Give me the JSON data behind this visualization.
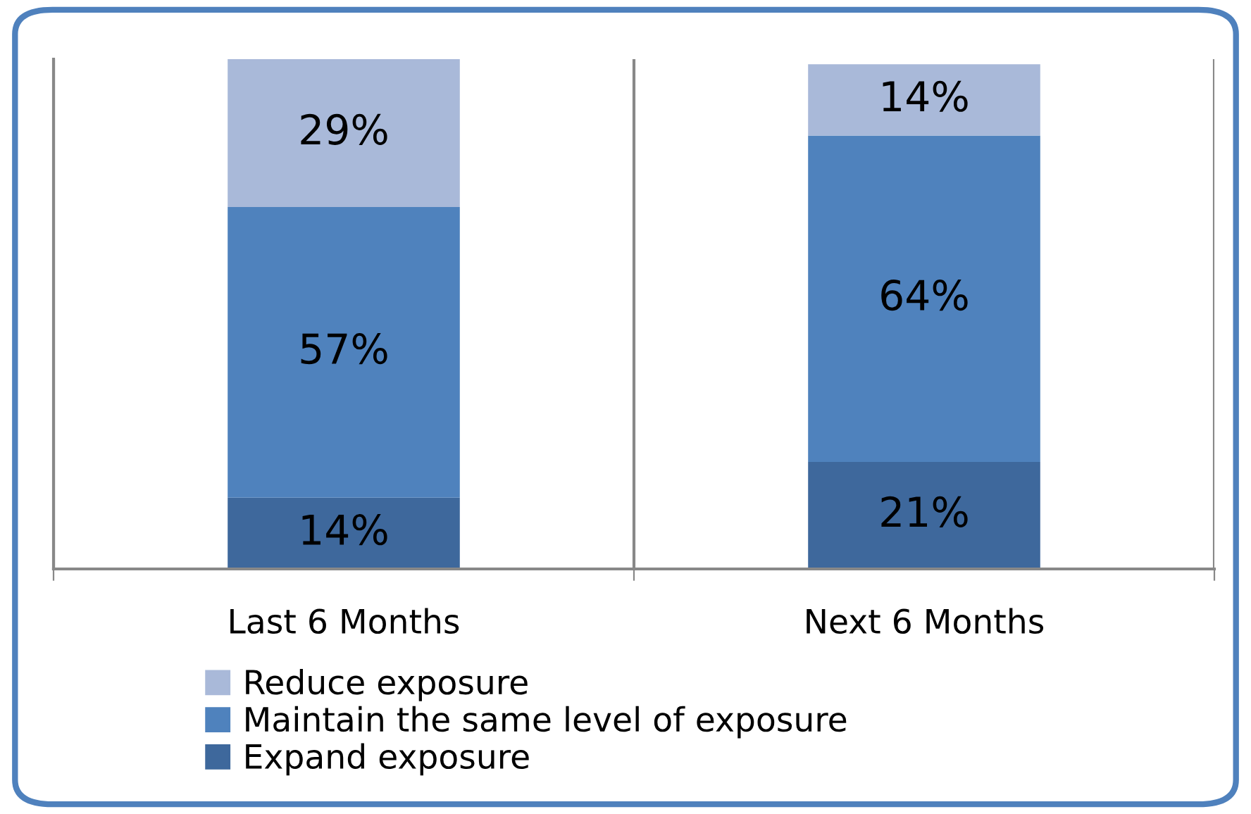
{
  "chart_data": {
    "type": "bar",
    "stacked": true,
    "categories": [
      "Last 6 Months",
      "Next 6 Months"
    ],
    "series": [
      {
        "name": "Expand exposure",
        "color": "#3e689c",
        "values": [
          14,
          21
        ],
        "value_labels": [
          "14%",
          "21%"
        ]
      },
      {
        "name": "Maintain the same level of exposure",
        "color": "#4f82bd",
        "values": [
          57,
          64
        ],
        "value_labels": [
          "57%",
          "64%"
        ]
      },
      {
        "name": "Reduce exposure",
        "color": "#a9b9d9",
        "values": [
          29,
          14
        ],
        "value_labels": [
          "29%",
          "14%"
        ]
      }
    ],
    "legend": "bottom",
    "grid": "x",
    "tick_labels": "x"
  }
}
